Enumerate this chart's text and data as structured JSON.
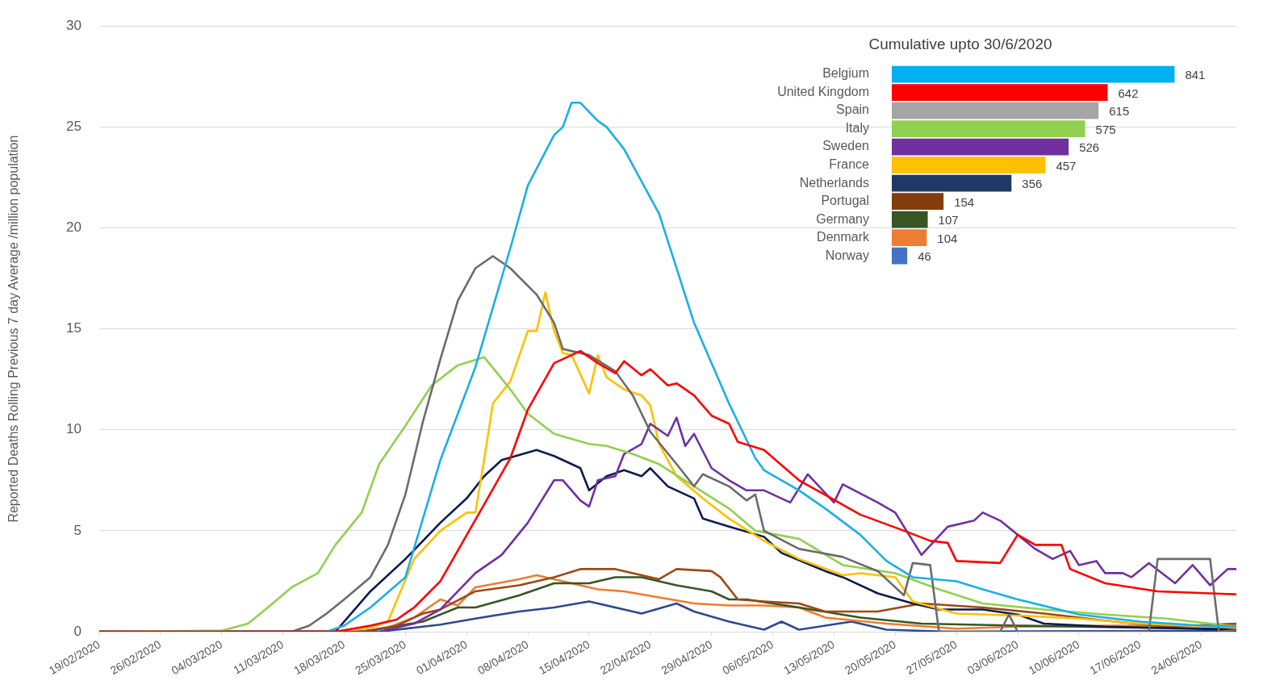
{
  "chart_data": [
    {
      "type": "line",
      "ylabel": "Reported Deaths Rolling Previous 7 day Average /million population",
      "xlim": [
        "2020-02-19",
        "2020-06-28"
      ],
      "xticks": [
        {
          "value": "2020-02-19",
          "label": "19/02/2020"
        },
        {
          "value": "2020-02-26",
          "label": "26/02/2020"
        },
        {
          "value": "2020-03-04",
          "label": "04/03/2020"
        },
        {
          "value": "2020-03-11",
          "label": "11/03/2020"
        },
        {
          "value": "2020-03-18",
          "label": "18/03/2020"
        },
        {
          "value": "2020-03-25",
          "label": "25/03/2020"
        },
        {
          "value": "2020-04-01",
          "label": "01/04/2020"
        },
        {
          "value": "2020-04-08",
          "label": "08/04/2020"
        },
        {
          "value": "2020-04-15",
          "label": "15/04/2020"
        },
        {
          "value": "2020-04-22",
          "label": "22/04/2020"
        },
        {
          "value": "2020-04-29",
          "label": "29/04/2020"
        },
        {
          "value": "2020-05-06",
          "label": "06/05/2020"
        },
        {
          "value": "2020-05-13",
          "label": "13/05/2020"
        },
        {
          "value": "2020-05-20",
          "label": "20/05/2020"
        },
        {
          "value": "2020-05-27",
          "label": "27/05/2020"
        },
        {
          "value": "2020-06-03",
          "label": "03/06/2020"
        },
        {
          "value": "2020-06-10",
          "label": "10/06/2020"
        },
        {
          "value": "2020-06-17",
          "label": "17/06/2020"
        },
        {
          "value": "2020-06-24",
          "label": "24/06/2020"
        }
      ],
      "ylim": [
        0,
        30
      ],
      "yticks": [
        0,
        5,
        10,
        15,
        20,
        25,
        30
      ],
      "grid": "y",
      "legend": false,
      "marker": "none",
      "line_style": "solid",
      "series": [
        {
          "color": "#ff0000",
          "x": [
            "2020-02-19",
            "2020-03-17",
            "2020-03-21",
            "2020-03-24",
            "2020-03-26",
            "2020-03-29",
            "2020-04-03",
            "2020-04-06",
            "2020-04-08",
            "2020-04-11",
            "2020-04-14",
            "2020-04-16",
            "2020-04-18",
            "2020-04-19",
            "2020-04-21",
            "2020-04-22",
            "2020-04-24",
            "2020-04-25",
            "2020-04-27",
            "2020-04-29",
            "2020-05-01",
            "2020-05-02",
            "2020-05-05",
            "2020-05-09",
            "2020-05-16",
            "2020-05-21",
            "2020-05-24",
            "2020-05-26",
            "2020-05-27",
            "2020-06-01",
            "2020-06-03",
            "2020-06-05",
            "2020-06-08",
            "2020-06-09",
            "2020-06-13",
            "2020-06-19",
            "2020-06-28"
          ],
          "values": [
            0,
            0,
            0.3,
            0.6,
            1.2,
            2.5,
            6.3,
            8.6,
            11,
            13.3,
            13.9,
            13.3,
            12.8,
            13.4,
            12.7,
            13,
            12.2,
            12.3,
            11.7,
            10.7,
            10.3,
            9.4,
            9.0,
            7.5,
            5.8,
            5.0,
            4.5,
            4.4,
            3.5,
            3.4,
            4.8,
            4.3,
            4.3,
            3.1,
            2.4,
            2.0,
            1.85
          ]
        },
        {
          "color": "#1aafe6",
          "x": [
            "2020-02-19",
            "2020-03-16",
            "2020-03-18",
            "2020-03-21",
            "2020-03-25",
            "2020-03-29",
            "2020-04-02",
            "2020-04-06",
            "2020-04-08",
            "2020-04-11",
            "2020-04-12",
            "2020-04-13",
            "2020-04-14",
            "2020-04-16",
            "2020-04-17",
            "2020-04-19",
            "2020-04-23",
            "2020-04-27",
            "2020-05-01",
            "2020-05-04",
            "2020-05-05",
            "2020-05-09",
            "2020-05-12",
            "2020-05-16",
            "2020-05-19",
            "2020-05-22",
            "2020-05-27",
            "2020-05-30",
            "2020-06-03",
            "2020-06-10",
            "2020-06-17",
            "2020-06-24",
            "2020-06-28"
          ],
          "values": [
            0,
            0,
            0.3,
            1.2,
            2.7,
            8.5,
            13.1,
            19,
            22.1,
            24.6,
            25,
            26.2,
            26.2,
            25.3,
            25,
            23.9,
            20.7,
            15.3,
            11.3,
            8.6,
            8.0,
            7.0,
            6.1,
            4.8,
            3.5,
            2.7,
            2.5,
            2.1,
            1.6,
            0.85,
            0.5,
            0.3,
            0.25
          ]
        },
        {
          "color": "#6b6b6b",
          "x": [
            "2020-02-19",
            "2020-03-12",
            "2020-03-14",
            "2020-03-16",
            "2020-03-18",
            "2020-03-21",
            "2020-03-23",
            "2020-03-25",
            "2020-03-27",
            "2020-03-29",
            "2020-03-31",
            "2020-04-02",
            "2020-04-04",
            "2020-04-06",
            "2020-04-09",
            "2020-04-11",
            "2020-04-12",
            "2020-04-15",
            "2020-04-18",
            "2020-04-20",
            "2020-04-22",
            "2020-04-25",
            "2020-04-27",
            "2020-04-28",
            "2020-05-01",
            "2020-05-03",
            "2020-05-04",
            "2020-05-05",
            "2020-05-09",
            "2020-05-14",
            "2020-05-18",
            "2020-05-21",
            "2020-05-22",
            "2020-05-24",
            "2020-05-25",
            "2020-06-01",
            "2020-06-02",
            "2020-06-03",
            "2020-06-18",
            "2020-06-19",
            "2020-06-25",
            "2020-06-26",
            "2020-06-28"
          ],
          "values": [
            0,
            0,
            0.3,
            0.9,
            1.6,
            2.7,
            4.3,
            6.8,
            10.4,
            13.5,
            16.4,
            18,
            18.6,
            18,
            16.7,
            15.3,
            14,
            13.7,
            12.9,
            11.7,
            9.9,
            8.3,
            7.2,
            7.8,
            7.2,
            6.5,
            6.8,
            5.0,
            4.1,
            3.7,
            3.0,
            1.8,
            3.4,
            3.3,
            0,
            0,
            0.85,
            0,
            0,
            3.6,
            3.6,
            0,
            0.1
          ]
        },
        {
          "color": "#92d050",
          "x": [
            "2020-02-19",
            "2020-03-04",
            "2020-03-07",
            "2020-03-09",
            "2020-03-12",
            "2020-03-15",
            "2020-03-17",
            "2020-03-20",
            "2020-03-22",
            "2020-03-25",
            "2020-03-28",
            "2020-03-31",
            "2020-04-03",
            "2020-04-06",
            "2020-04-08",
            "2020-04-11",
            "2020-04-15",
            "2020-04-17",
            "2020-04-20",
            "2020-04-23",
            "2020-04-27",
            "2020-05-01",
            "2020-05-04",
            "2020-05-09",
            "2020-05-14",
            "2020-05-20",
            "2020-05-25",
            "2020-05-30",
            "2020-06-06",
            "2020-06-13",
            "2020-06-20",
            "2020-06-28"
          ],
          "values": [
            0,
            0.05,
            0.4,
            1.1,
            2.2,
            2.9,
            4.3,
            5.9,
            8.3,
            10.2,
            12.2,
            13.2,
            13.6,
            12,
            10.8,
            9.8,
            9.3,
            9.2,
            8.8,
            8.3,
            7.2,
            6.1,
            5.0,
            4.6,
            3.3,
            2.9,
            2.1,
            1.4,
            1.1,
            0.85,
            0.65,
            0.25
          ]
        },
        {
          "color": "#7030a0",
          "x": [
            "2020-02-19",
            "2020-03-22",
            "2020-03-26",
            "2020-03-29",
            "2020-04-02",
            "2020-04-05",
            "2020-04-08",
            "2020-04-11",
            "2020-04-12",
            "2020-04-14",
            "2020-04-15",
            "2020-04-16",
            "2020-04-18",
            "2020-04-19",
            "2020-04-21",
            "2020-04-22",
            "2020-04-24",
            "2020-04-25",
            "2020-04-26",
            "2020-04-27",
            "2020-04-29",
            "2020-05-01",
            "2020-05-03",
            "2020-05-05",
            "2020-05-08",
            "2020-05-10",
            "2020-05-13",
            "2020-05-14",
            "2020-05-18",
            "2020-05-20",
            "2020-05-23",
            "2020-05-26",
            "2020-05-29",
            "2020-05-30",
            "2020-06-01",
            "2020-06-05",
            "2020-06-07",
            "2020-06-09",
            "2020-06-10",
            "2020-06-12",
            "2020-06-13",
            "2020-06-15",
            "2020-06-16",
            "2020-06-18",
            "2020-06-21",
            "2020-06-23",
            "2020-06-25",
            "2020-06-27",
            "2020-06-28"
          ],
          "values": [
            0,
            0,
            0.4,
            1.1,
            2.9,
            3.8,
            5.4,
            7.5,
            7.5,
            6.5,
            6.2,
            7.5,
            7.7,
            8.8,
            9.3,
            10.3,
            9.7,
            10.6,
            9.2,
            9.8,
            8.1,
            7.5,
            7.0,
            7.0,
            6.4,
            7.8,
            6.4,
            7.3,
            6.4,
            5.9,
            3.8,
            5.2,
            5.5,
            5.9,
            5.5,
            4.1,
            3.6,
            4.0,
            3.3,
            3.5,
            2.9,
            2.9,
            2.7,
            3.4,
            2.4,
            3.3,
            2.3,
            3.1,
            3.1
          ]
        },
        {
          "color": "#ffc000",
          "x": [
            "2020-02-19",
            "2020-03-18",
            "2020-03-21",
            "2020-03-23",
            "2020-03-26",
            "2020-03-29",
            "2020-04-01",
            "2020-04-02",
            "2020-04-03",
            "2020-04-04",
            "2020-04-06",
            "2020-04-08",
            "2020-04-09",
            "2020-04-10",
            "2020-04-11",
            "2020-04-12",
            "2020-04-13",
            "2020-04-15",
            "2020-04-16",
            "2020-04-17",
            "2020-04-19",
            "2020-04-21",
            "2020-04-22",
            "2020-04-23",
            "2020-04-25",
            "2020-04-28",
            "2020-05-01",
            "2020-05-05",
            "2020-05-09",
            "2020-05-14",
            "2020-05-16",
            "2020-05-20",
            "2020-05-22",
            "2020-05-27",
            "2020-06-03",
            "2020-06-10",
            "2020-06-17",
            "2020-06-28"
          ],
          "values": [
            0,
            0,
            0.2,
            0.5,
            3.6,
            5,
            5.9,
            5.9,
            8.5,
            11.3,
            12.4,
            14.9,
            14.9,
            16.8,
            14.9,
            13.8,
            13.7,
            11.8,
            13.7,
            12.6,
            12.0,
            11.7,
            11.2,
            9.3,
            7.7,
            6.6,
            5.6,
            4.5,
            3.6,
            2.8,
            2.9,
            2.7,
            1.5,
            0.9,
            0.8,
            0.65,
            0.4,
            0.2
          ]
        },
        {
          "color": "#0d1b4f",
          "x": [
            "2020-02-19",
            "2020-03-17",
            "2020-03-18",
            "2020-03-21",
            "2020-03-25",
            "2020-03-29",
            "2020-04-01",
            "2020-04-03",
            "2020-04-05",
            "2020-04-09",
            "2020-04-11",
            "2020-04-14",
            "2020-04-15",
            "2020-04-17",
            "2020-04-19",
            "2020-04-21",
            "2020-04-22",
            "2020-04-24",
            "2020-04-27",
            "2020-04-28",
            "2020-05-01",
            "2020-05-05",
            "2020-05-07",
            "2020-05-12",
            "2020-05-14",
            "2020-05-18",
            "2020-05-22",
            "2020-05-25",
            "2020-05-30",
            "2020-06-03",
            "2020-06-06",
            "2020-06-13",
            "2020-06-28"
          ],
          "values": [
            0,
            0,
            0.5,
            2.0,
            3.6,
            5.4,
            6.6,
            7.7,
            8.5,
            9,
            8.7,
            8.1,
            7.0,
            7.7,
            8.0,
            7.7,
            8.1,
            7.2,
            6.6,
            5.6,
            5.2,
            4.7,
            3.9,
            3.0,
            2.7,
            1.9,
            1.4,
            1.1,
            1.1,
            0.85,
            0.4,
            0.25,
            0.1
          ]
        },
        {
          "color": "#9c4a14",
          "x": [
            "2020-02-19",
            "2020-03-20",
            "2020-03-24",
            "2020-03-27",
            "2020-03-29",
            "2020-04-02",
            "2020-04-07",
            "2020-04-11",
            "2020-04-14",
            "2020-04-18",
            "2020-04-21",
            "2020-04-23",
            "2020-04-25",
            "2020-04-29",
            "2020-04-30",
            "2020-05-02",
            "2020-05-05",
            "2020-05-09",
            "2020-05-12",
            "2020-05-18",
            "2020-05-23",
            "2020-05-30",
            "2020-06-06",
            "2020-06-13",
            "2020-06-20",
            "2020-06-28"
          ],
          "values": [
            0,
            0,
            0.3,
            0.9,
            1.1,
            2.0,
            2.3,
            2.7,
            3.1,
            3.1,
            2.8,
            2.6,
            3.1,
            3.0,
            2.7,
            1.6,
            1.5,
            1.4,
            1.0,
            1.0,
            1.4,
            1.2,
            0.9,
            0.55,
            0.25,
            0.4
          ]
        },
        {
          "color": "#375623",
          "x": [
            "2020-02-19",
            "2020-03-20",
            "2020-03-23",
            "2020-03-27",
            "2020-03-31",
            "2020-04-02",
            "2020-04-07",
            "2020-04-11",
            "2020-04-15",
            "2020-04-18",
            "2020-04-21",
            "2020-04-25",
            "2020-04-29",
            "2020-05-01",
            "2020-05-03",
            "2020-05-09",
            "2020-05-16",
            "2020-05-23",
            "2020-06-03",
            "2020-06-17",
            "2020-06-28"
          ],
          "values": [
            0,
            0,
            0.2,
            0.5,
            1.2,
            1.2,
            1.8,
            2.4,
            2.4,
            2.7,
            2.7,
            2.3,
            2.0,
            1.6,
            1.6,
            1.2,
            0.7,
            0.4,
            0.3,
            0.2,
            0.15
          ]
        },
        {
          "color": "#ed7d31",
          "x": [
            "2020-02-19",
            "2020-03-20",
            "2020-03-23",
            "2020-03-26",
            "2020-03-28",
            "2020-03-29",
            "2020-03-31",
            "2020-04-02",
            "2020-04-07",
            "2020-04-09",
            "2020-04-13",
            "2020-04-16",
            "2020-04-19",
            "2020-04-23",
            "2020-04-27",
            "2020-05-01",
            "2020-05-05",
            "2020-05-09",
            "2020-05-12",
            "2020-05-19",
            "2020-05-27",
            "2020-06-03",
            "2020-06-13",
            "2020-06-28"
          ],
          "values": [
            0,
            0,
            0.2,
            0.7,
            1.3,
            1.6,
            1.3,
            2.2,
            2.6,
            2.8,
            2.4,
            2.1,
            2.0,
            1.7,
            1.4,
            1.3,
            1.3,
            1.2,
            0.7,
            0.4,
            0.15,
            0.25,
            0.3,
            0.3
          ]
        },
        {
          "color": "#2e4a8c",
          "x": [
            "2020-02-19",
            "2020-03-22",
            "2020-03-26",
            "2020-03-29",
            "2020-04-02",
            "2020-04-07",
            "2020-04-11",
            "2020-04-15",
            "2020-04-19",
            "2020-04-21",
            "2020-04-25",
            "2020-04-27",
            "2020-05-01",
            "2020-05-05",
            "2020-05-07",
            "2020-05-09",
            "2020-05-12",
            "2020-05-15",
            "2020-05-19",
            "2020-05-26",
            "2020-06-28"
          ],
          "values": [
            0,
            0,
            0.2,
            0.35,
            0.65,
            1.0,
            1.2,
            1.5,
            1.1,
            0.9,
            1.4,
            1.0,
            0.5,
            0.1,
            0.5,
            0.1,
            0.3,
            0.5,
            0.1,
            0,
            0.05
          ]
        }
      ]
    },
    {
      "type": "bar",
      "orientation": "horizontal",
      "title": "Cumulative upto 30/6/2020",
      "categories": [
        "Belgium",
        "United Kingdom",
        "Spain",
        "Italy",
        "Sweden",
        "France",
        "Netherlands",
        "Portugal",
        "Germany",
        "Denmark",
        "Norway"
      ],
      "values": [
        841,
        642,
        615,
        575,
        526,
        457,
        356,
        154,
        107,
        104,
        46
      ],
      "colors": [
        "#00b0f0",
        "#ff0000",
        "#a5a5a5",
        "#92d050",
        "#7030a0",
        "#ffc000",
        "#203864",
        "#843c0c",
        "#375623",
        "#ed7d31",
        "#4472c4"
      ],
      "data_labels": true,
      "tick_labels": "y",
      "legend": false
    }
  ]
}
